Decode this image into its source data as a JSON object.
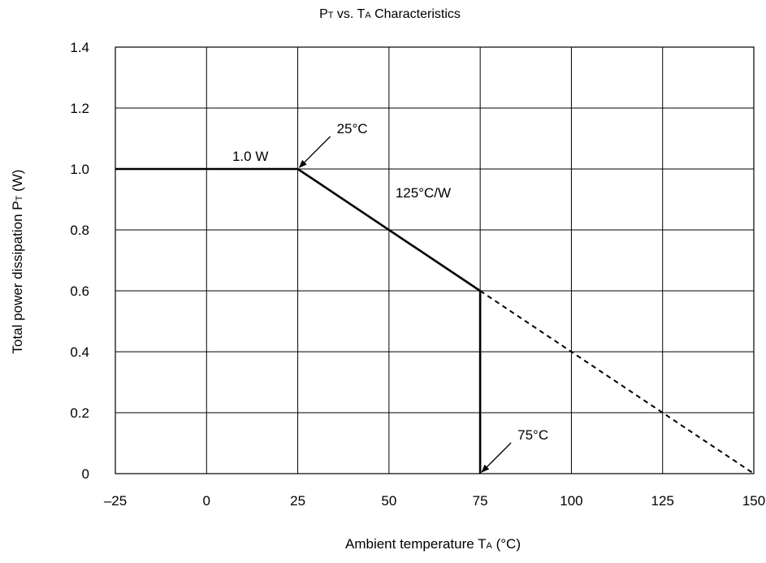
{
  "chart_data": {
    "type": "line",
    "title": {
      "main_1": "P",
      "sub_1": "T",
      "main_2": " vs. T",
      "sub_2": "A",
      "main_3": " Characteristics"
    },
    "xlabel": {
      "main": "Ambient temperature T",
      "sub": "A",
      "unit": " (°C)"
    },
    "ylabel": {
      "main": "Total power dissipation P",
      "sub": "T",
      "unit": " (W)"
    },
    "xlim": [
      -25,
      150
    ],
    "ylim": [
      0,
      1.4
    ],
    "x_ticks": [
      -25,
      0,
      25,
      50,
      75,
      100,
      125,
      150
    ],
    "x_tick_labels": [
      "–25",
      "0",
      "25",
      "50",
      "75",
      "100",
      "125",
      "150"
    ],
    "y_ticks": [
      0,
      0.2,
      0.4,
      0.6,
      0.8,
      1.0,
      1.2,
      1.4
    ],
    "y_tick_labels": [
      "0",
      "0.2",
      "0.4",
      "0.6",
      "0.8",
      "1.0",
      "1.2",
      "1.4"
    ],
    "grid": true,
    "series": [
      {
        "style": "solid",
        "x": [
          -25,
          25,
          75,
          75
        ],
        "y": [
          1.0,
          1.0,
          0.6,
          0
        ]
      },
      {
        "style": "dashed",
        "x": [
          75,
          150
        ],
        "y": [
          0.6,
          0
        ]
      }
    ],
    "annotations": [
      {
        "text": "1.0 W",
        "x": 12,
        "y": 1.0,
        "arrow": false
      },
      {
        "text": "25°C",
        "x": 25,
        "y": 1.0,
        "arrow": true
      },
      {
        "text": "125°C/W",
        "x": 50,
        "y": 0.8,
        "arrow": false
      },
      {
        "text": "75°C",
        "x": 75,
        "y": 0,
        "arrow": true
      }
    ]
  }
}
